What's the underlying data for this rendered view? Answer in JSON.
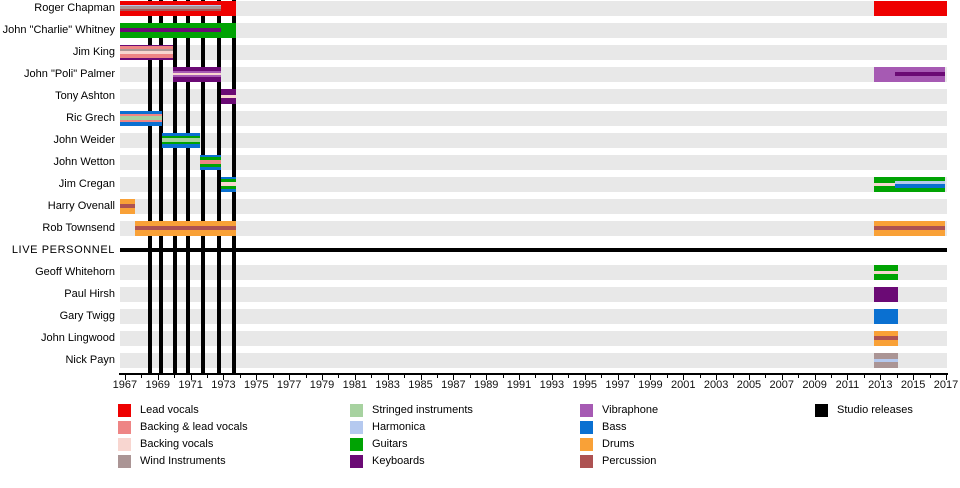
{
  "colors": {
    "lead": "#ee0000",
    "backing_lead": "#ee8585",
    "backing": "#f8d6d0",
    "wind": "#ab9595",
    "stringed": "#a7d2a0",
    "harmonica": "#b5c9ef",
    "guitars": "#00a303",
    "keyboards": "#6b0a75",
    "vibraphone": "#a65ab3",
    "bass": "#0a70d1",
    "drums": "#f9a137",
    "percussion": "#ad5252",
    "studio": "#000000",
    "row_band": "#e8e8e8"
  },
  "chart_data": {
    "type": "timeline",
    "axis": {
      "min_year": 1966.7,
      "max_year": 2017.06,
      "tick_start": 1967,
      "tick_end": 2017,
      "label_start": 1967,
      "label_step": 2,
      "tick_labels": [
        "1967",
        "1969",
        "1971",
        "1973",
        "1975",
        "1977",
        "1979",
        "1981",
        "1983",
        "1985",
        "1987",
        "1989",
        "1991",
        "1993",
        "1995",
        "1997",
        "1999",
        "2001",
        "2003",
        "2005",
        "2007",
        "2009",
        "2011",
        "2013",
        "2015",
        "2017"
      ]
    },
    "studio_releases": {
      "legend_label": "Studio releases",
      "years": [
        1968.55,
        1969.2,
        1970.05,
        1970.85,
        1971.78,
        1972.7,
        1973.67
      ]
    },
    "rows": [
      {
        "name": "Roger Chapman",
        "bars": [
          {
            "start": 1966.7,
            "end": 1973.78,
            "base": "lead",
            "stripes": [
              {
                "color": "harmonica",
                "from": 1966.7,
                "to": 1972.88,
                "top": 0.27,
                "h": 0.12
              },
              {
                "color": "wind",
                "from": 1966.7,
                "to": 1972.88,
                "top": 0.39,
                "h": 0.17
              },
              {
                "color": "percussion",
                "from": 1966.7,
                "to": 1972.88,
                "top": 0.56,
                "h": 0.17
              }
            ]
          },
          {
            "start": 2012.6,
            "end": 2017.06,
            "base": "lead",
            "stripes": []
          }
        ]
      },
      {
        "name": "John \"Charlie\" Whitney",
        "bars": [
          {
            "start": 1966.7,
            "end": 1973.78,
            "base": "guitars",
            "stripes": [
              {
                "color": "keyboards",
                "from": 1966.7,
                "to": 1972.88,
                "top": 0.33,
                "h": 0.3
              }
            ]
          }
        ]
      },
      {
        "name": "Jim King",
        "bars": [
          {
            "start": 1966.7,
            "end": 1969.9,
            "base": "backing_lead",
            "stripes": [
              {
                "color": "keyboards",
                "top": 0.0,
                "h": 0.13
              },
              {
                "color": "wind",
                "top": 0.3,
                "h": 0.13
              },
              {
                "color": "backing",
                "top": 0.43,
                "h": 0.2
              },
              {
                "color": "keyboards",
                "top": 0.87,
                "h": 0.13
              }
            ]
          }
        ]
      },
      {
        "name": "John \"Poli\" Palmer",
        "bars": [
          {
            "start": 1969.9,
            "end": 1972.88,
            "base": "keyboards",
            "stripes": [
              {
                "color": "vibraphone",
                "top": 0.28,
                "h": 0.13
              },
              {
                "color": "backing",
                "top": 0.41,
                "h": 0.18
              },
              {
                "color": "vibraphone",
                "top": 0.59,
                "h": 0.13
              }
            ]
          },
          {
            "start": 2012.6,
            "end": 2016.95,
            "base": "vibraphone",
            "stripes": [
              {
                "color": "keyboards",
                "from": 2013.9,
                "to": 2016.95,
                "top": 0.36,
                "h": 0.28
              }
            ]
          }
        ]
      },
      {
        "name": "Tony Ashton",
        "bars": [
          {
            "start": 1972.88,
            "end": 1973.78,
            "base": "keyboards",
            "stripes": [
              {
                "color": "backing",
                "top": 0.4,
                "h": 0.2
              }
            ]
          }
        ]
      },
      {
        "name": "Ric Grech",
        "bars": [
          {
            "start": 1966.7,
            "end": 1969.25,
            "base": "bass",
            "stripes": [
              {
                "color": "backing_lead",
                "top": 0.2,
                "h": 0.18
              },
              {
                "color": "stringed",
                "top": 0.38,
                "h": 0.24
              },
              {
                "color": "backing_lead",
                "top": 0.62,
                "h": 0.18
              }
            ]
          }
        ]
      },
      {
        "name": "John Weider",
        "bars": [
          {
            "start": 1969.25,
            "end": 1971.55,
            "base": "bass",
            "stripes": [
              {
                "color": "guitars",
                "top": 0.2,
                "h": 0.18
              },
              {
                "color": "stringed",
                "top": 0.38,
                "h": 0.24
              },
              {
                "color": "guitars",
                "top": 0.62,
                "h": 0.18
              }
            ]
          }
        ]
      },
      {
        "name": "John Wetton",
        "bars": [
          {
            "start": 1971.55,
            "end": 1972.88,
            "base": "bass",
            "stripes": [
              {
                "color": "guitars",
                "top": 0.18,
                "h": 0.18
              },
              {
                "color": "backing_lead",
                "top": 0.36,
                "h": 0.28
              },
              {
                "color": "guitars",
                "top": 0.64,
                "h": 0.18
              }
            ]
          }
        ]
      },
      {
        "name": "Jim Cregan",
        "bars": [
          {
            "start": 1972.88,
            "end": 1973.78,
            "base": "bass",
            "stripes": [
              {
                "color": "guitars",
                "top": 0.18,
                "h": 0.18
              },
              {
                "color": "backing",
                "top": 0.36,
                "h": 0.28
              },
              {
                "color": "guitars",
                "top": 0.64,
                "h": 0.18
              }
            ]
          },
          {
            "start": 2012.6,
            "end": 2016.95,
            "base": "guitars",
            "stripes": [
              {
                "color": "backing",
                "from": 2012.6,
                "to": 2013.9,
                "top": 0.4,
                "h": 0.2
              },
              {
                "color": "harmonica",
                "from": 2013.9,
                "to": 2016.95,
                "top": 0.28,
                "h": 0.2
              },
              {
                "color": "bass",
                "from": 2013.9,
                "to": 2016.95,
                "top": 0.48,
                "h": 0.26
              }
            ]
          }
        ]
      },
      {
        "name": "Harry Ovenall",
        "bars": [
          {
            "start": 1966.7,
            "end": 1967.62,
            "base": "drums",
            "stripes": [
              {
                "color": "percussion",
                "top": 0.38,
                "h": 0.25
              }
            ]
          }
        ]
      },
      {
        "name": "Rob Townsend",
        "bars": [
          {
            "start": 1967.62,
            "end": 1973.78,
            "base": "drums",
            "stripes": [
              {
                "color": "percussion",
                "top": 0.38,
                "h": 0.25
              }
            ]
          },
          {
            "start": 2012.6,
            "end": 2016.95,
            "base": "drums",
            "stripes": [
              {
                "color": "percussion",
                "top": 0.38,
                "h": 0.25
              }
            ]
          }
        ]
      },
      {
        "name": "LIVE PERSONNEL",
        "type": "divider",
        "bars": []
      },
      {
        "name": "Geoff Whitehorn",
        "bars": [
          {
            "start": 2012.6,
            "end": 2014.05,
            "base": "guitars",
            "stripes": [
              {
                "color": "backing",
                "top": 0.4,
                "h": 0.2
              }
            ]
          }
        ]
      },
      {
        "name": "Paul Hirsh",
        "bars": [
          {
            "start": 2012.6,
            "end": 2014.05,
            "base": "keyboards",
            "stripes": []
          }
        ]
      },
      {
        "name": "Gary Twigg",
        "bars": [
          {
            "start": 2012.6,
            "end": 2014.05,
            "base": "bass",
            "stripes": []
          }
        ]
      },
      {
        "name": "John Lingwood",
        "bars": [
          {
            "start": 2012.6,
            "end": 2014.05,
            "base": "drums",
            "stripes": [
              {
                "color": "percussion",
                "top": 0.38,
                "h": 0.25
              }
            ]
          }
        ]
      },
      {
        "name": "Nick Payn",
        "bars": [
          {
            "start": 2012.6,
            "end": 2014.05,
            "base": "wind",
            "stripes": [
              {
                "color": "harmonica",
                "top": 0.4,
                "h": 0.22
              }
            ]
          }
        ]
      }
    ]
  },
  "legend": {
    "columns": [
      {
        "items": [
          {
            "label": "Lead vocals",
            "color": "lead"
          },
          {
            "label": "Backing & lead vocals",
            "color": "backing_lead"
          },
          {
            "label": "Backing vocals",
            "color": "backing"
          },
          {
            "label": "Wind Instruments",
            "color": "wind"
          }
        ]
      },
      {
        "items": [
          {
            "label": "Stringed instruments",
            "color": "stringed"
          },
          {
            "label": "Harmonica",
            "color": "harmonica"
          },
          {
            "label": "Guitars",
            "color": "guitars"
          },
          {
            "label": "Keyboards",
            "color": "keyboards"
          }
        ]
      },
      {
        "items": [
          {
            "label": "Vibraphone",
            "color": "vibraphone"
          },
          {
            "label": "Bass",
            "color": "bass"
          },
          {
            "label": "Drums",
            "color": "drums"
          },
          {
            "label": "Percussion",
            "color": "percussion"
          }
        ]
      },
      {
        "items": [
          {
            "label": "Studio releases",
            "color": "studio"
          }
        ]
      }
    ]
  }
}
